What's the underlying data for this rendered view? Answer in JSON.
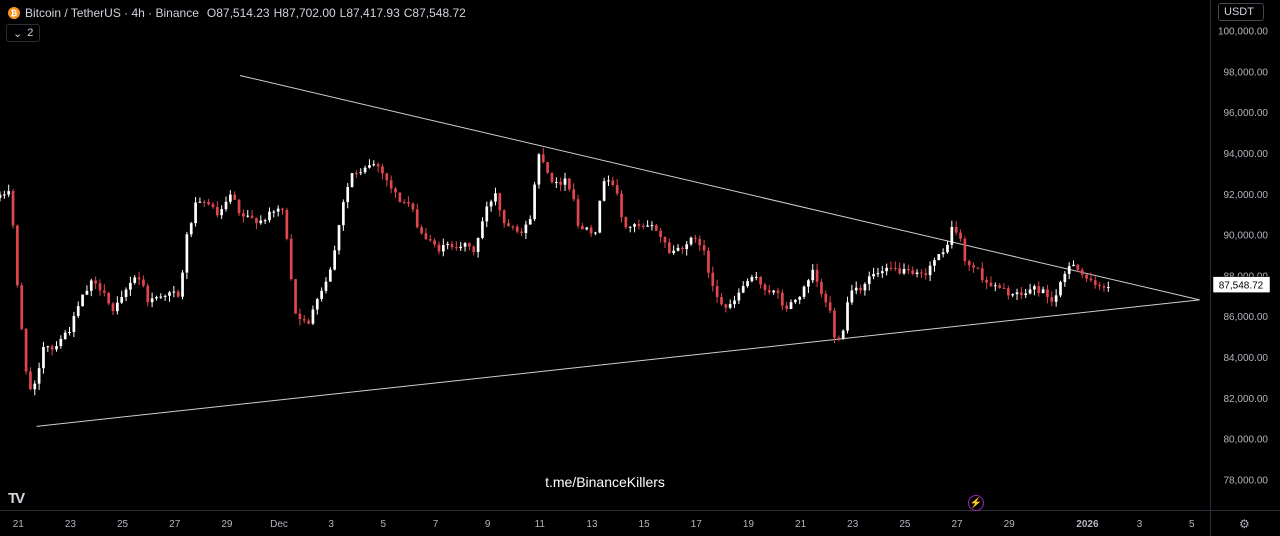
{
  "header": {
    "symbol": "Bitcoin / TetherUS · 4h · Binance",
    "open_key": "O",
    "open": "87,514.23",
    "high_key": "H",
    "high": "87,702.00",
    "low_key": "L",
    "low": "87,417.93",
    "close_key": "C",
    "close": "87,548.72"
  },
  "indicator_toggle": {
    "count": "2"
  },
  "currency": "USDT",
  "watermark": "t.me/BinanceKillers",
  "logo": "TV",
  "icons": {
    "coin": "bitcoin-icon",
    "chevron": "chevron-down-icon",
    "bolt": "lightning-icon",
    "gear": "gear-icon"
  },
  "colors": {
    "up": "#ffffff",
    "down": "#e0464d",
    "trendline": "#cfcfcf",
    "background": "#000000"
  },
  "chart_data": {
    "type": "candlestick",
    "title": "Bitcoin / TetherUS · 4h · Binance",
    "timeframe": "4h",
    "y_axis": {
      "ylim": [
        76500,
        101500
      ],
      "ticks": [
        "78,000.00",
        "80,000.00",
        "82,000.00",
        "84,000.00",
        "86,000.00",
        "88,000.00",
        "90,000.00",
        "92,000.00",
        "94,000.00",
        "96,000.00",
        "98,000.00",
        "100,000.00"
      ],
      "tick_values": [
        78000,
        80000,
        82000,
        84000,
        86000,
        88000,
        90000,
        92000,
        94000,
        96000,
        98000,
        100000
      ]
    },
    "x_axis": {
      "start_date": "2025-11-21",
      "xlim_days": [
        -0.7,
        45.7
      ],
      "ticks": [
        "21",
        "23",
        "25",
        "27",
        "29",
        "Dec",
        "3",
        "5",
        "7",
        "9",
        "11",
        "13",
        "15",
        "17",
        "19",
        "21",
        "23",
        "25",
        "27",
        "29",
        "2026",
        "3",
        "5"
      ],
      "tick_days": [
        0,
        2,
        4,
        6,
        8,
        10,
        12,
        14,
        16,
        18,
        20,
        22,
        24,
        26,
        28,
        30,
        32,
        34,
        36,
        38,
        41,
        43,
        45
      ]
    },
    "last_price": "87,548.72",
    "last_price_value": 87548.72,
    "trendlines": [
      {
        "name": "upper",
        "points": [
          {
            "day": 8.5,
            "price": 97800
          },
          {
            "day": 45.3,
            "price": 86800
          }
        ]
      },
      {
        "name": "lower",
        "points": [
          {
            "day": 0.7,
            "price": 80600
          },
          {
            "day": 45.3,
            "price": 86800
          }
        ]
      }
    ],
    "price_path": [
      [
        -0.7,
        91800
      ],
      [
        -0.3,
        92300
      ],
      [
        0.0,
        86800
      ],
      [
        0.2,
        84600
      ],
      [
        0.4,
        82300
      ],
      [
        0.7,
        82600
      ],
      [
        1.0,
        84800
      ],
      [
        1.3,
        84400
      ],
      [
        1.6,
        84900
      ],
      [
        2.0,
        85400
      ],
      [
        2.4,
        86800
      ],
      [
        2.8,
        87600
      ],
      [
        3.3,
        87300
      ],
      [
        3.6,
        86100
      ],
      [
        4.0,
        86900
      ],
      [
        4.4,
        88000
      ],
      [
        4.7,
        87800
      ],
      [
        5.0,
        86700
      ],
      [
        5.5,
        87100
      ],
      [
        6.0,
        87100
      ],
      [
        6.2,
        86800
      ],
      [
        6.4,
        89600
      ],
      [
        6.8,
        91400
      ],
      [
        7.3,
        91600
      ],
      [
        7.6,
        90900
      ],
      [
        7.9,
        91300
      ],
      [
        8.2,
        92100
      ],
      [
        8.4,
        91000
      ],
      [
        8.8,
        90800
      ],
      [
        9.3,
        90700
      ],
      [
        9.7,
        91000
      ],
      [
        10.0,
        91300
      ],
      [
        10.2,
        91000
      ],
      [
        10.4,
        88800
      ],
      [
        10.6,
        86200
      ],
      [
        10.8,
        86000
      ],
      [
        11.1,
        85400
      ],
      [
        11.4,
        86900
      ],
      [
        11.7,
        87400
      ],
      [
        12.1,
        88900
      ],
      [
        12.4,
        91400
      ],
      [
        12.8,
        93000
      ],
      [
        13.1,
        92900
      ],
      [
        13.5,
        93500
      ],
      [
        13.9,
        93300
      ],
      [
        14.2,
        92500
      ],
      [
        14.6,
        91700
      ],
      [
        15.0,
        91500
      ],
      [
        15.4,
        90200
      ],
      [
        15.7,
        89700
      ],
      [
        16.1,
        89300
      ],
      [
        16.6,
        89500
      ],
      [
        17.0,
        89500
      ],
      [
        17.5,
        89200
      ],
      [
        17.9,
        91100
      ],
      [
        18.3,
        92100
      ],
      [
        18.6,
        90600
      ],
      [
        19.0,
        90500
      ],
      [
        19.3,
        90100
      ],
      [
        19.6,
        90600
      ],
      [
        20.0,
        94200
      ],
      [
        20.3,
        93100
      ],
      [
        20.6,
        92400
      ],
      [
        21.0,
        92800
      ],
      [
        21.3,
        91800
      ],
      [
        21.5,
        90100
      ],
      [
        21.8,
        90500
      ],
      [
        22.1,
        90000
      ],
      [
        22.5,
        93000
      ],
      [
        22.9,
        92300
      ],
      [
        23.2,
        90400
      ],
      [
        23.6,
        90400
      ],
      [
        24.0,
        90300
      ],
      [
        24.4,
        90400
      ],
      [
        24.7,
        89800
      ],
      [
        25.0,
        89100
      ],
      [
        25.4,
        89400
      ],
      [
        25.8,
        89700
      ],
      [
        26.2,
        89600
      ],
      [
        26.5,
        88000
      ],
      [
        26.9,
        86800
      ],
      [
        27.2,
        86300
      ],
      [
        27.5,
        86800
      ],
      [
        27.9,
        87700
      ],
      [
        28.3,
        87800
      ],
      [
        28.7,
        87300
      ],
      [
        29.1,
        87100
      ],
      [
        29.4,
        86300
      ],
      [
        29.8,
        86800
      ],
      [
        30.2,
        87400
      ],
      [
        30.5,
        88200
      ],
      [
        30.8,
        87000
      ],
      [
        31.1,
        86500
      ],
      [
        31.3,
        84900
      ],
      [
        31.6,
        85200
      ],
      [
        31.9,
        87400
      ],
      [
        32.3,
        87400
      ],
      [
        32.7,
        88000
      ],
      [
        33.1,
        88100
      ],
      [
        33.5,
        88300
      ],
      [
        33.9,
        88200
      ],
      [
        34.3,
        88000
      ],
      [
        34.7,
        88000
      ],
      [
        35.1,
        88700
      ],
      [
        35.5,
        89100
      ],
      [
        35.8,
        90300
      ],
      [
        36.1,
        90000
      ],
      [
        36.3,
        88600
      ],
      [
        36.7,
        88400
      ],
      [
        37.1,
        87700
      ],
      [
        37.5,
        87400
      ],
      [
        37.9,
        87200
      ],
      [
        38.3,
        87000
      ],
      [
        38.6,
        87100
      ],
      [
        38.9,
        87400
      ],
      [
        39.3,
        87200
      ],
      [
        39.7,
        86700
      ],
      [
        40.1,
        87900
      ],
      [
        40.4,
        88800
      ],
      [
        40.7,
        88200
      ],
      [
        41.0,
        87800
      ],
      [
        41.3,
        87400
      ],
      [
        41.6,
        87514
      ],
      [
        41.9,
        87548.72
      ]
    ]
  }
}
